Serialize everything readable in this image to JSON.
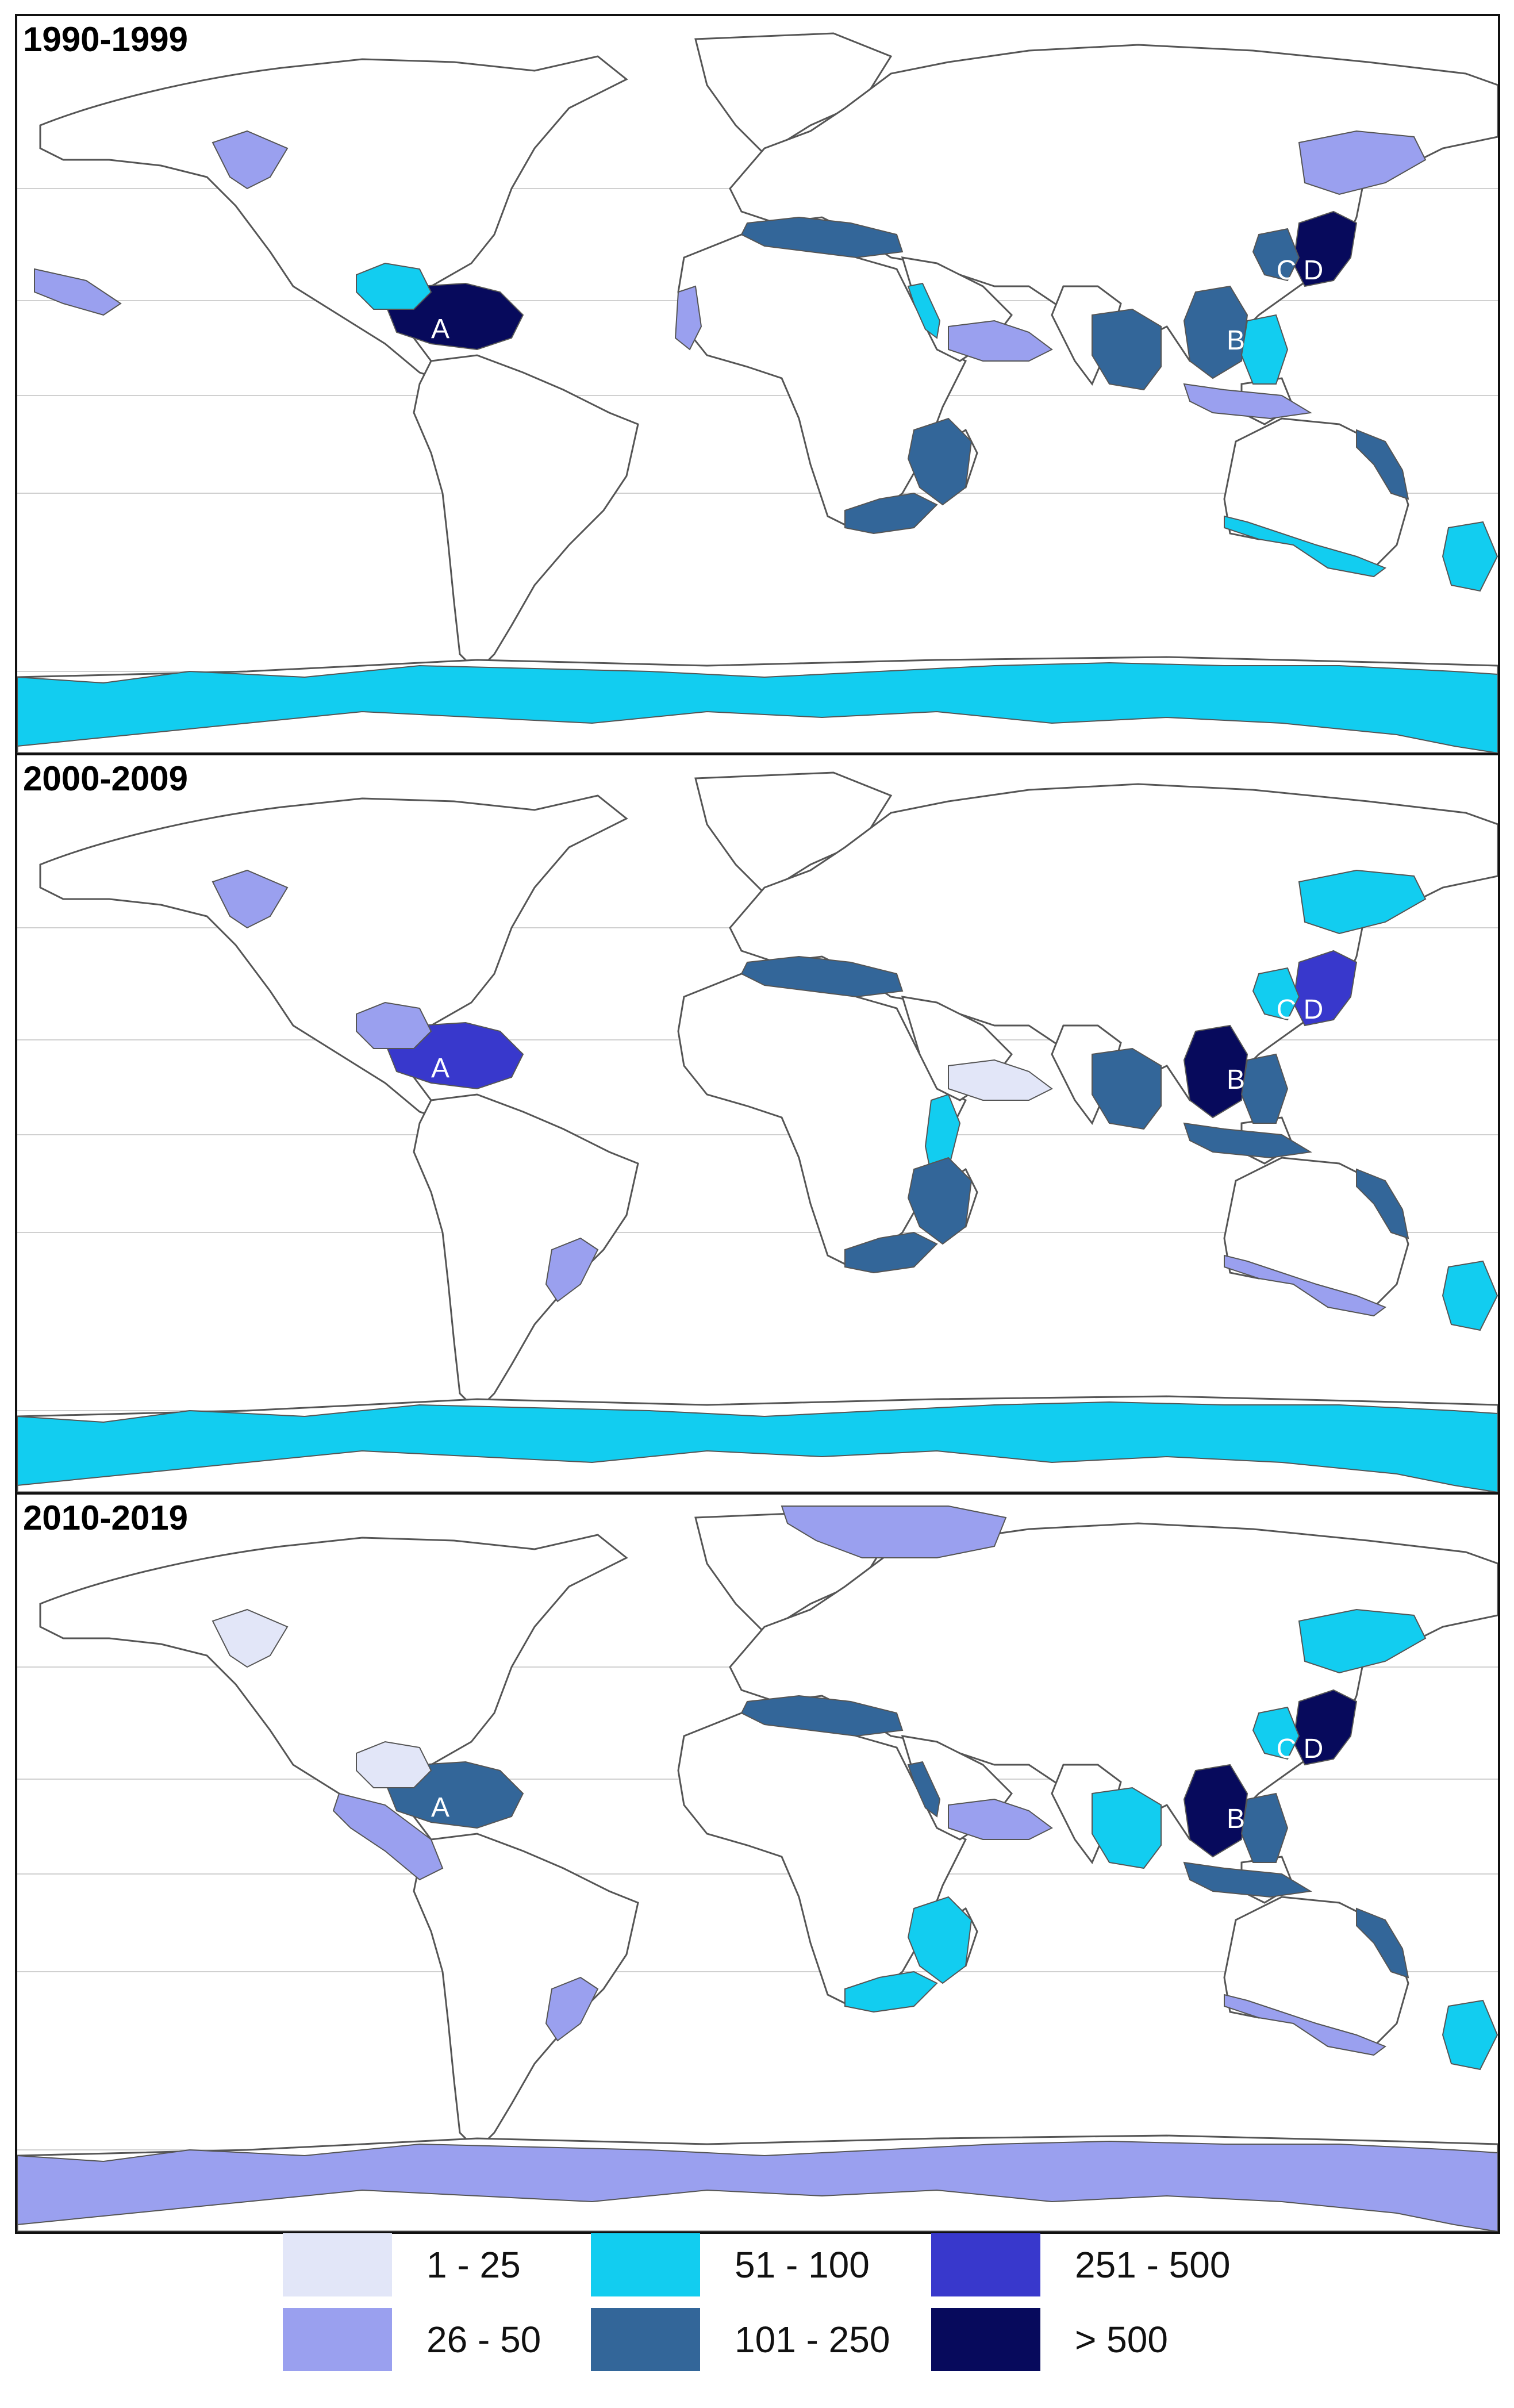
{
  "panels": [
    {
      "title": "1990-1999",
      "labels": [
        "A",
        "B",
        "C",
        "D"
      ],
      "regions": {
        "caribbean": "> 500",
        "gulf_mexico": "51 - 100",
        "japan_pacific": "> 500",
        "yellow_sea": "101 - 250",
        "south_china_sea": "101 - 250",
        "bay_of_bengal": "101 - 250",
        "philippines": "51 - 100",
        "mediterranean": "101 - 250",
        "arabian_sea": "26 - 50",
        "red_sea": "51 - 100",
        "mozambique": "101 - 250",
        "south_africa": "101 - 250",
        "south_australia": "51 - 100",
        "queensland": "101 - 250",
        "new_zealand": "51 - 100",
        "antarctica": "51 - 100",
        "north_pacific_alaska": "26 - 50",
        "hawaii": "26 - 50",
        "indonesia": "26 - 50",
        "okhotsk": "26 - 50",
        "west_africa": "26 - 50"
      }
    },
    {
      "title": "2000-2009",
      "labels": [
        "A",
        "B",
        "C",
        "D"
      ],
      "regions": {
        "caribbean": "251 - 500",
        "gulf_mexico": "26 - 50",
        "japan_pacific": "251 - 500",
        "yellow_sea": "51 - 100",
        "south_china_sea": "> 500",
        "bay_of_bengal": "101 - 250",
        "philippines": "101 - 250",
        "mediterranean": "101 - 250",
        "east_africa": "51 - 100",
        "mozambique": "101 - 250",
        "south_africa": "101 - 250",
        "queensland": "101 - 250",
        "new_zealand": "51 - 100",
        "antarctica": "51 - 100",
        "north_pacific_alaska": "26 - 50",
        "indonesia": "101 - 250",
        "okhotsk": "51 - 100",
        "south_australia": "26 - 50",
        "argentina": "26 - 50",
        "arabian_sea": "1 - 25"
      }
    },
    {
      "title": "2010-2019",
      "labels": [
        "A",
        "B",
        "C",
        "D"
      ],
      "regions": {
        "caribbean": "101 - 250",
        "gulf_mexico": "1 - 25",
        "japan_pacific": "> 500",
        "yellow_sea": "51 - 100",
        "south_china_sea": "> 500",
        "bay_of_bengal": "51 - 100",
        "philippines": "101 - 250",
        "mediterranean": "101 - 250",
        "arabian_sea": "26 - 50",
        "mozambique": "51 - 100",
        "south_africa": "51 - 100",
        "queensland": "101 - 250",
        "new_zealand": "51 - 100",
        "antarctica": "26 - 50",
        "north_pacific_alaska": "1 - 25",
        "indonesia": "101 - 250",
        "okhotsk": "51 - 100",
        "south_australia": "26 - 50",
        "argentina": "26 - 50",
        "barents": "26 - 50",
        "pacific_peru": "26 - 50",
        "red_sea": "101 - 250"
      }
    }
  ],
  "legend": [
    {
      "label": "1 - 25",
      "color": "#e2e6f8"
    },
    {
      "label": "26 - 50",
      "color": "#9aa0ef"
    },
    {
      "label": "51 - 100",
      "color": "#12cdf0"
    },
    {
      "label": "101 - 250",
      "color": "#336699"
    },
    {
      "label": "251 - 500",
      "color": "#3838cc"
    },
    {
      "label": "> 500",
      "color": "#070a5c"
    }
  ]
}
